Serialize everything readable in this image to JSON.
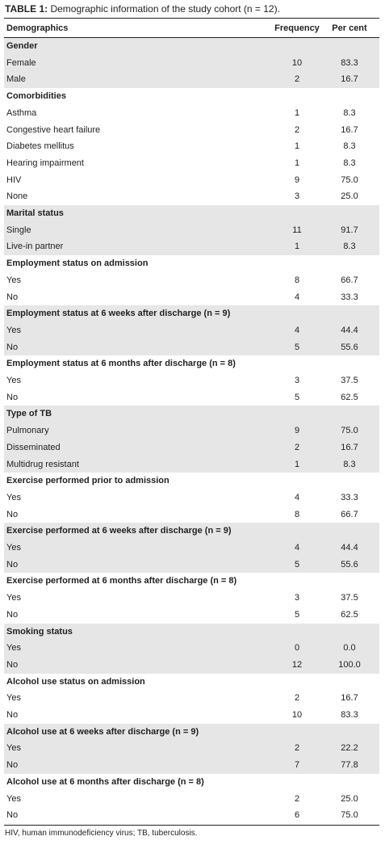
{
  "title": {
    "label": "TABLE 1:",
    "text": "Demographic information of the study cohort (n = 12)."
  },
  "table": {
    "columns": [
      "Demographics",
      "Frequency",
      "Per cent"
    ],
    "groups": [
      {
        "heading": "Gender",
        "rows": [
          [
            "Female",
            10,
            "83.3"
          ],
          [
            "Male",
            2,
            "16.7"
          ]
        ]
      },
      {
        "heading": "Comorbidities",
        "rows": [
          [
            "Asthma",
            1,
            "8.3"
          ],
          [
            "Congestive heart failure",
            2,
            "16.7"
          ],
          [
            "Diabetes mellitus",
            1,
            "8.3"
          ],
          [
            "Hearing impairment",
            1,
            "8.3"
          ],
          [
            "HIV",
            9,
            "75.0"
          ],
          [
            "None",
            3,
            "25.0"
          ]
        ]
      },
      {
        "heading": "Marital status",
        "rows": [
          [
            "Single",
            11,
            "91.7"
          ],
          [
            "Live-in partner",
            1,
            "8.3"
          ]
        ]
      },
      {
        "heading": "Employment status on admission",
        "rows": [
          [
            "Yes",
            8,
            "66.7"
          ],
          [
            "No",
            4,
            "33.3"
          ]
        ]
      },
      {
        "heading": "Employment status at 6 weeks after discharge (n = 9)",
        "rows": [
          [
            "Yes",
            4,
            "44.4"
          ],
          [
            "No",
            5,
            "55.6"
          ]
        ]
      },
      {
        "heading": "Employment status at 6 months after discharge (n = 8)",
        "rows": [
          [
            "Yes",
            3,
            "37.5"
          ],
          [
            "No",
            5,
            "62.5"
          ]
        ]
      },
      {
        "heading": "Type of TB",
        "rows": [
          [
            "Pulmonary",
            9,
            "75.0"
          ],
          [
            "Disseminated",
            2,
            "16.7"
          ],
          [
            "Multidrug resistant",
            1,
            "8.3"
          ]
        ]
      },
      {
        "heading": "Exercise performed prior to admission",
        "rows": [
          [
            "Yes",
            4,
            "33.3"
          ],
          [
            "No",
            8,
            "66.7"
          ]
        ]
      },
      {
        "heading": "Exercise performed at 6 weeks after discharge (n = 9)",
        "rows": [
          [
            "Yes",
            4,
            "44.4"
          ],
          [
            "No",
            5,
            "55.6"
          ]
        ]
      },
      {
        "heading": "Exercise performed at 6 months after discharge (n = 8)",
        "rows": [
          [
            "Yes",
            3,
            "37.5"
          ],
          [
            "No",
            5,
            "62.5"
          ]
        ]
      },
      {
        "heading": "Smoking status",
        "rows": [
          [
            "Yes",
            0,
            "0.0"
          ],
          [
            "No",
            12,
            "100.0"
          ]
        ]
      },
      {
        "heading": "Alcohol use status on admission",
        "rows": [
          [
            "Yes",
            2,
            "16.7"
          ],
          [
            "No",
            10,
            "83.3"
          ]
        ]
      },
      {
        "heading": "Alcohol use at 6 weeks after discharge (n = 9)",
        "rows": [
          [
            "Yes",
            2,
            "22.2"
          ],
          [
            "No",
            7,
            "77.8"
          ]
        ]
      },
      {
        "heading": "Alcohol use at 6 months after discharge (n = 8)",
        "rows": [
          [
            "Yes",
            2,
            "25.0"
          ],
          [
            "No",
            6,
            "75.0"
          ]
        ]
      }
    ]
  },
  "footnote": "HIV, human immunodeficiency virus; TB, tuberculosis."
}
